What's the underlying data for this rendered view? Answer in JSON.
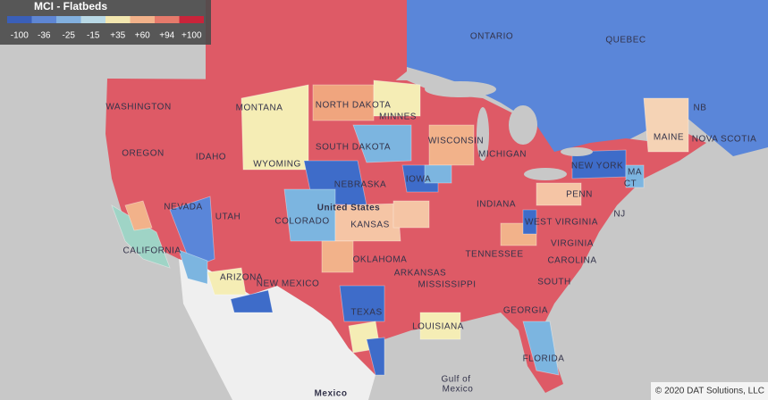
{
  "legend": {
    "title": "MCI - Flatbeds",
    "labels": [
      "-100",
      "-36",
      "-25",
      "-15",
      "+35",
      "+60",
      "+94",
      "+100"
    ]
  },
  "map_labels": [
    "ONTARIO",
    "QUEBEC",
    "NB",
    "NOVA SCOTIA",
    "WASHINGTON",
    "MONTANA",
    "NORTH DAKOTA",
    "MINNES",
    "OREGON",
    "IDAHO",
    "SOUTH DAKOTA",
    "WYOMING",
    "WISCONSIN",
    "MICHIGAN",
    "MAINE",
    "NEW YORK",
    "MA",
    "CT",
    "NEBRASKA",
    "IOWA",
    "NEVADA",
    "UTAH",
    "COLORADO",
    "United States",
    "KANSAS",
    "INDIANA",
    "PENN",
    "WEST VIRGINIA",
    "NJ",
    "CALIFORNIA",
    "OKLAHOMA",
    "ARKANSAS",
    "TENNESSEE",
    "VIRGINIA",
    "CAROLINA",
    "ARIZONA",
    "NEW MEXICO",
    "MISSISSIPPI",
    "SOUTH",
    "GEORGIA",
    "TEXAS",
    "LOUISIANA",
    "FLORIDA",
    "Gulf of",
    "Mexico",
    "Mexico"
  ],
  "attribution": "© 2020 DAT Solutions, LLC"
}
